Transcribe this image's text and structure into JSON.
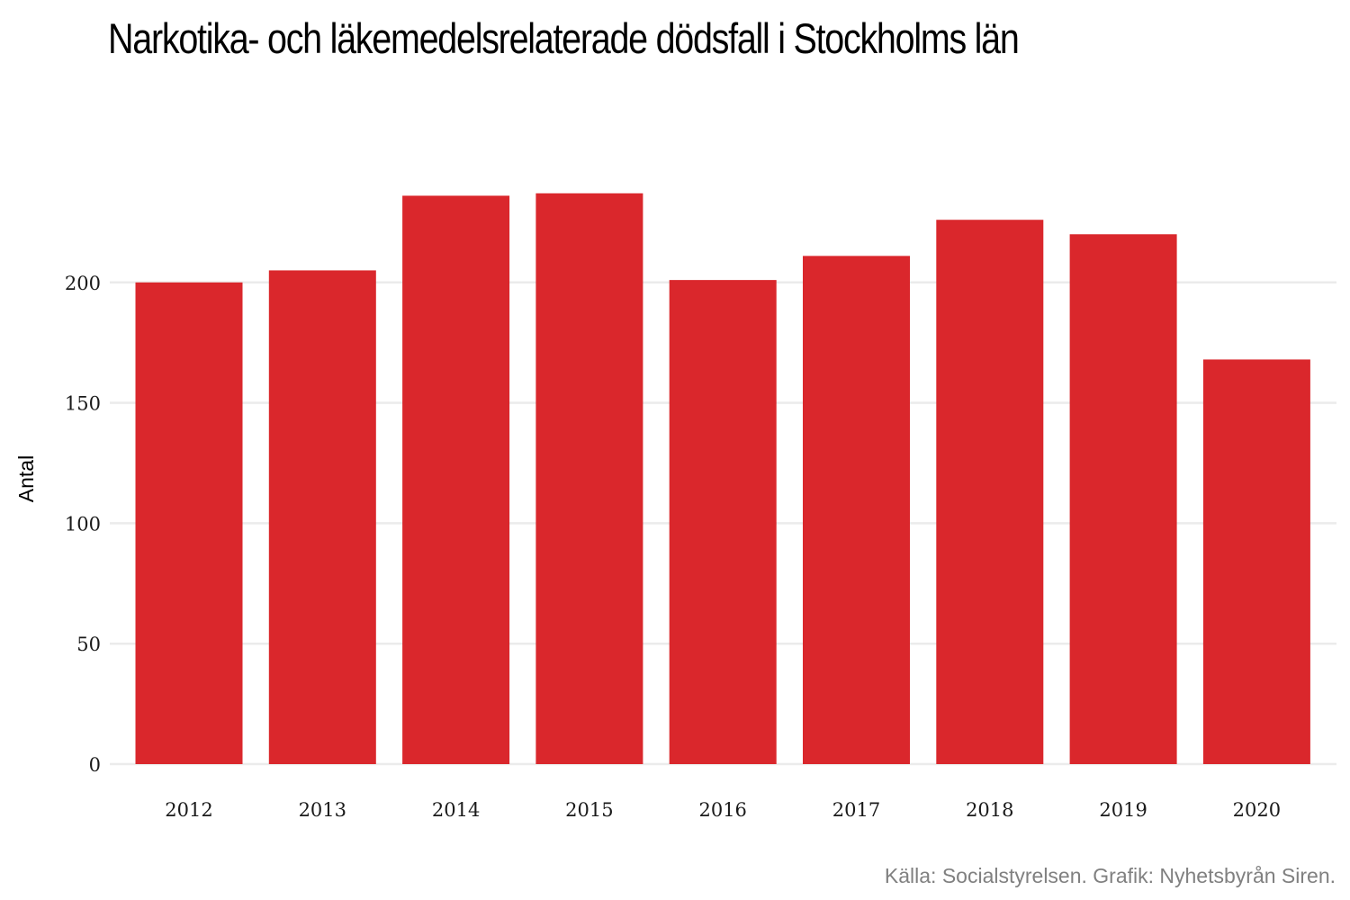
{
  "chart_data": {
    "type": "bar",
    "title": "Narkotika- och läkemedelsrelaterade dödsfall i Stockholms län",
    "xlabel": "",
    "ylabel": "Antal",
    "categories": [
      "2012",
      "2013",
      "2014",
      "2015",
      "2016",
      "2017",
      "2018",
      "2019",
      "2020"
    ],
    "values": [
      200,
      205,
      236,
      237,
      201,
      211,
      226,
      220,
      168
    ],
    "ylim": [
      0,
      250
    ],
    "yticks": [
      0,
      50,
      100,
      150,
      200
    ],
    "grid": true,
    "legend": "none",
    "colors": {
      "bar": "#da272c",
      "grid": "#ebebeb"
    }
  },
  "caption": "Källa: Socialstyrelsen. Grafik: Nyhetsbyrån Siren."
}
